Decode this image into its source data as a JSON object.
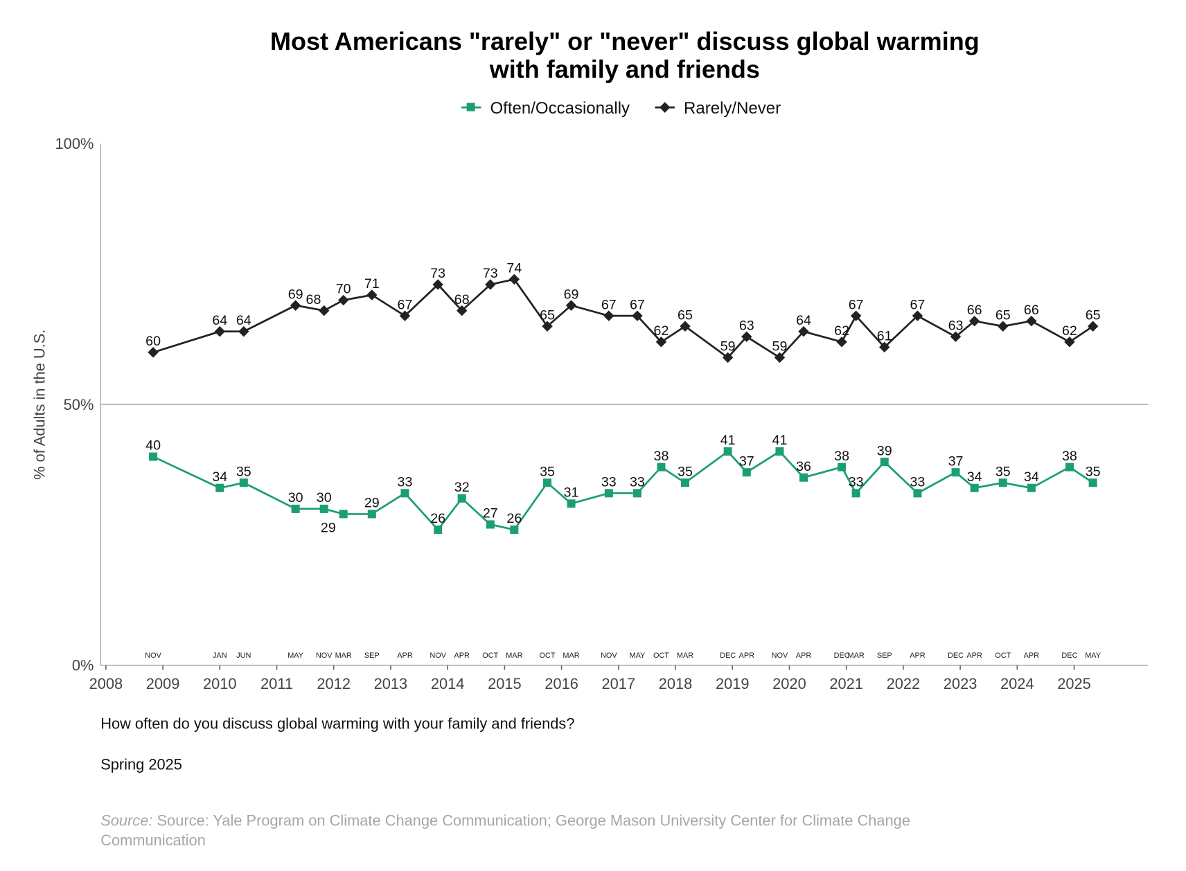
{
  "chart_data": {
    "type": "line",
    "title": [
      "Most Americans \"rarely\" or \"never\" discuss global warming",
      "with family and friends"
    ],
    "ylabel": "% of Adults in the U.S.",
    "ylim": [
      0,
      100
    ],
    "yticks": [
      {
        "v": 0,
        "label": "0%"
      },
      {
        "v": 50,
        "label": "50%"
      },
      {
        "v": 100,
        "label": "100%"
      }
    ],
    "xlim": [
      2008,
      2025.5
    ],
    "xticks": [
      "2008",
      "2009",
      "2010",
      "2011",
      "2012",
      "2013",
      "2014",
      "2015",
      "2016",
      "2017",
      "2018",
      "2019",
      "2020",
      "2021",
      "2022",
      "2023",
      "2024",
      "2025"
    ],
    "legend_position": "top-center",
    "months": [
      "NOV",
      "JAN",
      "JUN",
      "MAY",
      "NOV",
      "MAR",
      "SEP",
      "APR",
      "NOV",
      "APR",
      "OCT",
      "MAR",
      "OCT",
      "MAR",
      "NOV",
      "MAY",
      "OCT",
      "MAR",
      "DEC",
      "APR",
      "NOV",
      "APR",
      "DEC",
      "MAR",
      "SEP",
      "APR",
      "DEC",
      "APR",
      "OCT",
      "APR",
      "DEC",
      "MAY"
    ],
    "x": [
      2008.83,
      2010.0,
      2010.42,
      2011.33,
      2011.83,
      2012.17,
      2012.67,
      2013.25,
      2013.83,
      2014.25,
      2014.75,
      2015.17,
      2015.75,
      2016.17,
      2016.83,
      2017.33,
      2017.75,
      2018.17,
      2018.92,
      2019.25,
      2019.83,
      2020.25,
      2020.92,
      2021.17,
      2021.67,
      2022.25,
      2022.92,
      2023.25,
      2023.75,
      2024.25,
      2024.92,
      2025.33
    ],
    "series": [
      {
        "name": "Often/Occasionally",
        "color": "#1b9e77",
        "marker": "square",
        "values": [
          40,
          34,
          35,
          30,
          30,
          29,
          29,
          33,
          26,
          32,
          27,
          26,
          35,
          31,
          33,
          33,
          38,
          35,
          41,
          37,
          41,
          36,
          38,
          33,
          39,
          33,
          37,
          34,
          35,
          34,
          38,
          35
        ]
      },
      {
        "name": "Rarely/Never",
        "color": "#222222",
        "marker": "diamond",
        "values": [
          60,
          64,
          64,
          69,
          68,
          70,
          71,
          67,
          73,
          68,
          73,
          74,
          65,
          69,
          67,
          67,
          62,
          65,
          59,
          63,
          59,
          64,
          62,
          67,
          61,
          67,
          63,
          66,
          65,
          66,
          62,
          65
        ]
      }
    ],
    "gridline": 50
  },
  "notes": {
    "question": "How often do you discuss global warming with your family and friends?",
    "period": "Spring 2025",
    "source_prefix": "Source:",
    "source_line1": " Source: Yale Program on Climate Change Communication; George Mason University Center for Climate Change",
    "source_line2": "Communication"
  }
}
